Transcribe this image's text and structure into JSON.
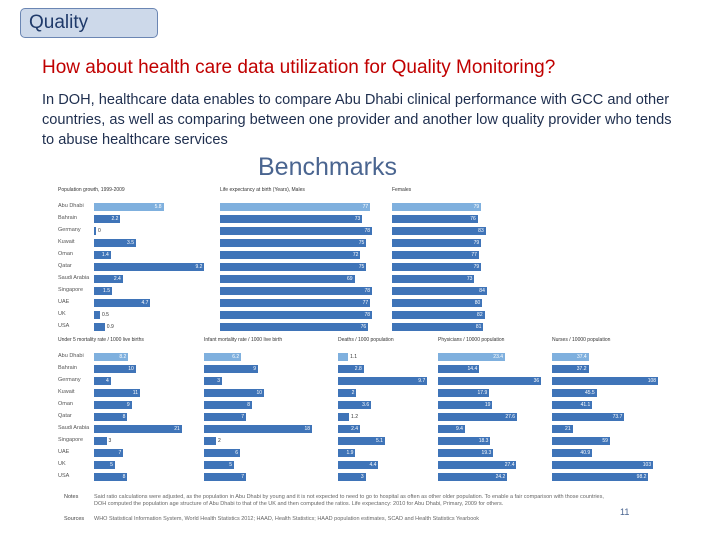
{
  "tag": "Quality",
  "headline": "How about health care data utilization for Quality Monitoring?",
  "intro": "In DOH, healthcare data enables to compare Abu Dhabi clinical performance with GCC and other countries, as well as comparing between one provider and another low quality provider who tends to abuse healthcare services",
  "benchmarks_title": "Benchmarks",
  "chart_data": [
    {
      "type": "bar",
      "title": "Population growth, 1999-2009",
      "categories": [
        "Abu Dhabi",
        "Bahrain",
        "Germany",
        "Kuwait",
        "Oman",
        "Qatar",
        "Saudi Arabia",
        "Singapore",
        "UAE",
        "UK",
        "USA"
      ],
      "values": [
        5.8,
        2.2,
        0,
        3.5,
        1.4,
        9.2,
        2.4,
        1.5,
        4.7,
        0.5,
        0.9
      ],
      "xlim": [
        0,
        10
      ]
    },
    {
      "type": "bar",
      "title": "Life expectancy at birth (Years), Males",
      "categories": [
        "Abu Dhabi",
        "Bahrain",
        "Germany",
        "Kuwait",
        "Oman",
        "Qatar",
        "Saudi Arabia",
        "Singapore",
        "UAE",
        "UK",
        "USA"
      ],
      "values": [
        77,
        73,
        78,
        75,
        72,
        75,
        69,
        78,
        77,
        78,
        76
      ],
      "xlim": [
        0,
        80
      ]
    },
    {
      "type": "bar",
      "title": "Females",
      "categories": [
        "Abu Dhabi",
        "Bahrain",
        "Germany",
        "Kuwait",
        "Oman",
        "Qatar",
        "Saudi Arabia",
        "Singapore",
        "UAE",
        "UK",
        "USA"
      ],
      "values": [
        79,
        76,
        83,
        79,
        77,
        79,
        73,
        84,
        80,
        82,
        81
      ],
      "xlim": [
        0,
        85
      ]
    },
    {
      "type": "bar",
      "title": "Under 5 mortality rate / 1000 live births",
      "categories": [
        "Abu Dhabi",
        "Bahrain",
        "Germany",
        "Kuwait",
        "Oman",
        "Qatar",
        "Saudi Arabia",
        "Singapore",
        "UAE",
        "UK",
        "USA"
      ],
      "values": [
        8.2,
        10,
        4,
        11,
        9,
        8,
        21,
        3,
        7,
        5,
        8
      ],
      "xlim": [
        0,
        22
      ]
    },
    {
      "type": "bar",
      "title": "Infant mortality rate / 1000 live birth",
      "categories": [
        "Abu Dhabi",
        "Bahrain",
        "Germany",
        "Kuwait",
        "Oman",
        "Qatar",
        "Saudi Arabia",
        "Singapore",
        "UAE",
        "UK",
        "USA"
      ],
      "values": [
        6.2,
        9,
        3,
        10,
        8,
        7,
        18,
        2,
        6,
        5,
        7
      ],
      "xlim": [
        0,
        20
      ]
    },
    {
      "type": "bar",
      "title": "Deaths / 1000 population",
      "categories": [
        "Abu Dhabi",
        "Bahrain",
        "Germany",
        "Kuwait",
        "Oman",
        "Qatar",
        "Saudi Arabia",
        "Singapore",
        "UAE",
        "UK",
        "USA"
      ],
      "values": [
        1.1,
        2.8,
        9.7,
        2.0,
        3.6,
        1.2,
        2.4,
        5.1,
        1.9,
        4.4,
        3.0
      ],
      "xlim": [
        0,
        10
      ]
    },
    {
      "type": "bar",
      "title": "Physicians / 10000 population",
      "categories": [
        "Abu Dhabi",
        "Bahrain",
        "Germany",
        "Kuwait",
        "Oman",
        "Qatar",
        "Saudi Arabia",
        "Singapore",
        "UAE",
        "UK",
        "USA"
      ],
      "values": [
        23.4,
        14.4,
        36,
        17.9,
        19,
        27.6,
        9.4,
        18.3,
        19.3,
        27.4,
        24.2
      ],
      "xlim": [
        0,
        37
      ]
    },
    {
      "type": "bar",
      "title": "Nurses / 10000 population",
      "categories": [
        "Abu Dhabi",
        "Bahrain",
        "Germany",
        "Kuwait",
        "Oman",
        "Qatar",
        "Saudi Arabia",
        "Singapore",
        "UAE",
        "UK",
        "USA"
      ],
      "values": [
        37.4,
        37.2,
        108,
        45.5,
        41.1,
        73.7,
        21,
        59,
        40.9,
        103,
        98.2
      ],
      "xlim": [
        0,
        110
      ]
    }
  ],
  "notes": {
    "notes_label": "Notes",
    "notes_text": "Said ratio calculations were adjusted, as the population in Abu Dhabi by young and it is not expected to need to go to hospital as often as other older population. To enable a fair comparison with those countries, DOH computed the population age structure of Abu Dhabi to that of the UK and then computed the ratios. Life expectancy: 2010 for Abu Dhabi, Primary, 2009 for others.",
    "sources_label": "Sources",
    "sources_text": "WHO Statistical Information System, World Health Statistics 2012; HAAD, Health Statistics; HAAD population estimates, SCAD and Health Statistics Yearbook"
  },
  "page_number": "11"
}
